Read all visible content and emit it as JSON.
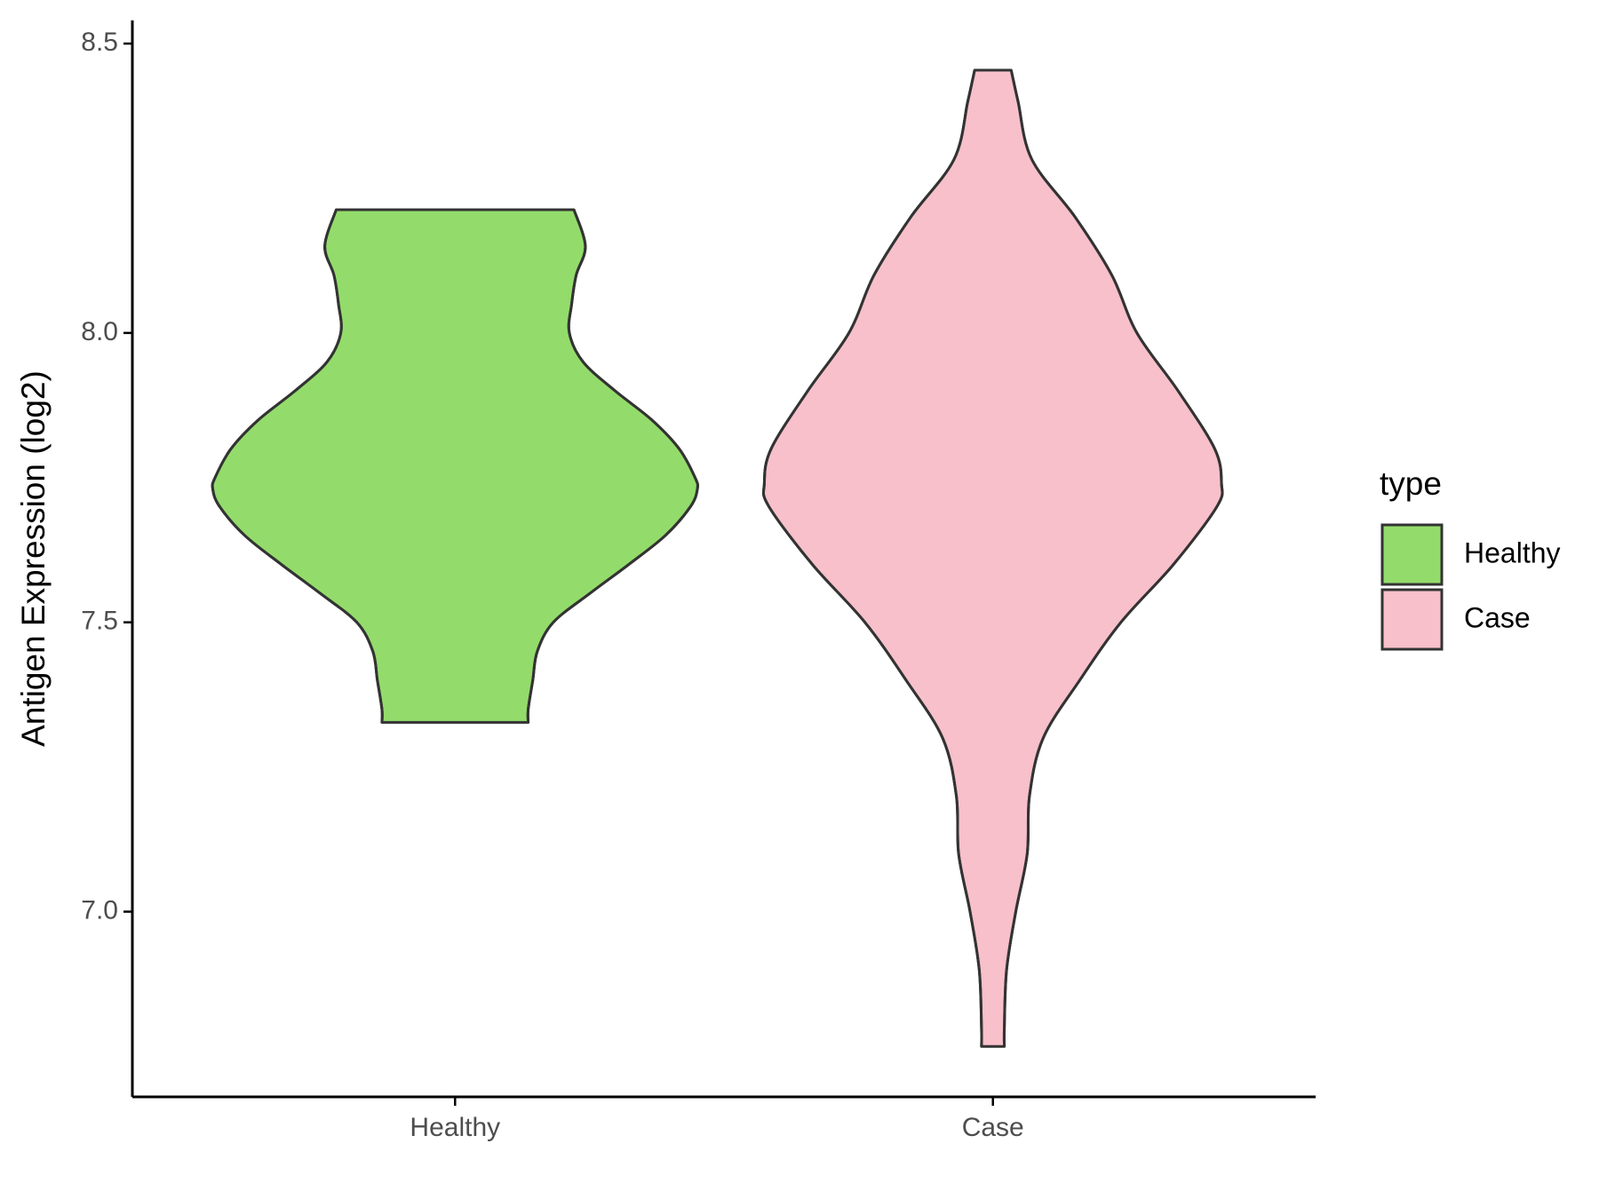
{
  "chart_data": {
    "type": "violin",
    "y_label": "Antigen Expression (log2)",
    "categories": [
      "Healthy",
      "Case"
    ],
    "legend_title": "type",
    "legend_position": "right",
    "ylim": [
      6.68,
      8.54
    ],
    "yticks": [
      {
        "value": 7,
        "label": "7.0"
      },
      7.5,
      {
        "value": 8,
        "label": "8.0"
      },
      8.5
    ],
    "series": [
      {
        "name": "Healthy",
        "color": "#93dc6b",
        "y": [
          7.327,
          7.35,
          7.4,
          7.45,
          7.5,
          7.55,
          7.6,
          7.65,
          7.7,
          7.73,
          7.75,
          7.8,
          7.85,
          7.9,
          7.95,
          8.0,
          8.05,
          8.1,
          8.15,
          8.213
        ],
        "density": [
          0.32,
          0.32,
          0.34,
          0.36,
          0.43,
          0.59,
          0.76,
          0.92,
          1.03,
          1.06,
          1.05,
          0.98,
          0.86,
          0.7,
          0.56,
          0.5,
          0.51,
          0.53,
          0.57,
          0.52
        ]
      },
      {
        "name": "Case",
        "color": "#f7c0cb",
        "y": [
          6.767,
          6.8,
          6.9,
          7.0,
          7.1,
          7.2,
          7.3,
          7.4,
          7.5,
          7.6,
          7.7,
          7.74,
          7.8,
          7.9,
          8.0,
          8.1,
          8.2,
          8.3,
          8.4,
          8.454
        ],
        "density": [
          0.05,
          0.05,
          0.06,
          0.1,
          0.15,
          0.16,
          0.22,
          0.38,
          0.56,
          0.79,
          0.98,
          1.0,
          0.97,
          0.81,
          0.63,
          0.52,
          0.36,
          0.17,
          0.11,
          0.08
        ]
      }
    ]
  }
}
